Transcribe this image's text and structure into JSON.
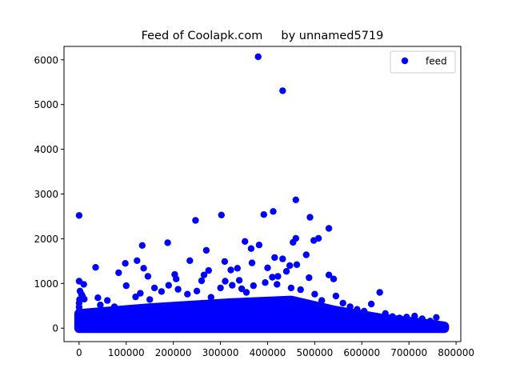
{
  "chart_data": {
    "type": "scatter",
    "title": "Feed of Coolapk.com     by unnamed5719",
    "xlabel": "",
    "ylabel": "",
    "xlim": [
      -32000,
      810000
    ],
    "ylim": [
      -300,
      6300
    ],
    "xticks": [
      {
        "value": 0,
        "label": "0"
      },
      {
        "value": 100000,
        "label": "100000"
      },
      {
        "value": 200000,
        "label": "200000"
      },
      {
        "value": 300000,
        "label": "300000"
      },
      {
        "value": 400000,
        "label": "400000"
      },
      {
        "value": 500000,
        "label": "500000"
      },
      {
        "value": 600000,
        "label": "600000"
      },
      {
        "value": 700000,
        "label": "700000"
      },
      {
        "value": 800000,
        "label": "800000"
      }
    ],
    "yticks": [
      {
        "value": 0,
        "label": "0"
      },
      {
        "value": 1000,
        "label": "1000"
      },
      {
        "value": 2000,
        "label": "2000"
      },
      {
        "value": 3000,
        "label": "3000"
      },
      {
        "value": 4000,
        "label": "4000"
      },
      {
        "value": 5000,
        "label": "5000"
      },
      {
        "value": 6000,
        "label": "6000"
      }
    ],
    "grid": false,
    "legend": {
      "position": "top-right",
      "entries": [
        "feed"
      ]
    },
    "series": [
      {
        "name": "feed",
        "color": "#0000ff",
        "marker": "circle",
        "points": [
          [
            380000,
            6070
          ],
          [
            432000,
            5310
          ],
          [
            460000,
            2870
          ],
          [
            0,
            2520
          ],
          [
            302000,
            2530
          ],
          [
            412000,
            2610
          ],
          [
            392000,
            2540
          ],
          [
            247000,
            2410
          ],
          [
            490000,
            2480
          ],
          [
            530000,
            2230
          ],
          [
            188000,
            1910
          ],
          [
            352000,
            1940
          ],
          [
            382000,
            1860
          ],
          [
            134000,
            1850
          ],
          [
            508000,
            2010
          ],
          [
            460000,
            2010
          ],
          [
            365000,
            1780
          ],
          [
            270000,
            1740
          ],
          [
            454000,
            1920
          ],
          [
            498000,
            1960
          ],
          [
            35000,
            1360
          ],
          [
            98000,
            1450
          ],
          [
            123000,
            1510
          ],
          [
            235000,
            1510
          ],
          [
            309000,
            1490
          ],
          [
            367000,
            1460
          ],
          [
            415000,
            1580
          ],
          [
            432000,
            1550
          ],
          [
            447000,
            1400
          ],
          [
            462000,
            1420
          ],
          [
            482000,
            1640
          ],
          [
            400000,
            1350
          ],
          [
            440000,
            1270
          ],
          [
            137000,
            1340
          ],
          [
            84000,
            1240
          ],
          [
            275000,
            1290
          ],
          [
            336000,
            1340
          ],
          [
            322000,
            1300
          ],
          [
            203000,
            1200
          ],
          [
            265000,
            1190
          ],
          [
            488000,
            1130
          ],
          [
            530000,
            1190
          ],
          [
            540000,
            1100
          ],
          [
            410000,
            1140
          ],
          [
            422000,
            1160
          ],
          [
            100000,
            950
          ],
          [
            146000,
            1160
          ],
          [
            260000,
            1060
          ],
          [
            206000,
            1100
          ],
          [
            340000,
            1070
          ],
          [
            0,
            1050
          ],
          [
            10000,
            980
          ],
          [
            2000,
            830
          ],
          [
            5000,
            760
          ],
          [
            1000,
            640
          ],
          [
            0,
            560
          ],
          [
            0,
            470
          ],
          [
            0,
            380
          ],
          [
            0,
            300
          ],
          [
            0,
            220
          ],
          [
            0,
            150
          ],
          [
            0,
            80
          ],
          [
            3000,
            30
          ],
          [
            11000,
            650
          ],
          [
            7000,
            720
          ],
          [
            40000,
            680
          ],
          [
            45000,
            520
          ],
          [
            60000,
            620
          ],
          [
            75000,
            480
          ],
          [
            120000,
            700
          ],
          [
            130000,
            780
          ],
          [
            150000,
            640
          ],
          [
            160000,
            900
          ],
          [
            175000,
            820
          ],
          [
            190000,
            960
          ],
          [
            210000,
            870
          ],
          [
            230000,
            760
          ],
          [
            250000,
            830
          ],
          [
            280000,
            690
          ],
          [
            300000,
            900
          ],
          [
            310000,
            1050
          ],
          [
            325000,
            960
          ],
          [
            345000,
            880
          ],
          [
            355000,
            800
          ],
          [
            370000,
            950
          ],
          [
            395000,
            1020
          ],
          [
            420000,
            980
          ],
          [
            450000,
            900
          ],
          [
            470000,
            860
          ],
          [
            500000,
            760
          ],
          [
            515000,
            620
          ],
          [
            545000,
            720
          ],
          [
            560000,
            560
          ],
          [
            575000,
            480
          ],
          [
            590000,
            420
          ],
          [
            605000,
            380
          ],
          [
            620000,
            540
          ],
          [
            638000,
            800
          ],
          [
            650000,
            330
          ],
          [
            665000,
            260
          ],
          [
            680000,
            230
          ],
          [
            695000,
            250
          ],
          [
            712000,
            270
          ],
          [
            728000,
            210
          ],
          [
            745000,
            160
          ],
          [
            758000,
            240
          ],
          [
            770000,
            80
          ]
        ]
      }
    ]
  }
}
